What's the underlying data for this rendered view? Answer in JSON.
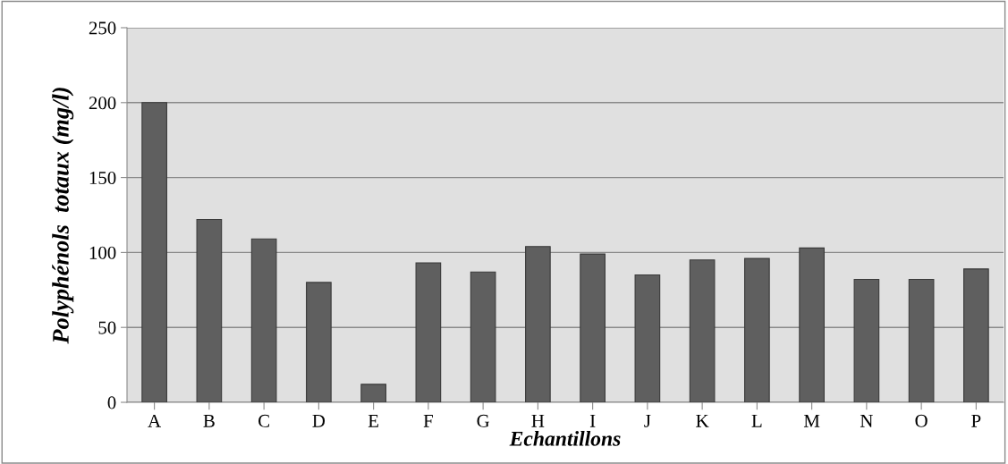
{
  "chart_data": {
    "type": "bar",
    "xlabel": "Echantillons",
    "ylabel": "Polyphénols  totaux (mg/l)",
    "categories": [
      "A",
      "B",
      "C",
      "D",
      "E",
      "F",
      "G",
      "H",
      "I",
      "J",
      "K",
      "L",
      "M",
      "N",
      "O",
      "P"
    ],
    "values": [
      200,
      122,
      109,
      80,
      12,
      93,
      87,
      104,
      99,
      85,
      95,
      96,
      103,
      82,
      82,
      89
    ],
    "color": "#5f5f5f",
    "ylim": [
      0,
      250
    ],
    "yticks": [
      0,
      50,
      100,
      150,
      200,
      250
    ],
    "grid": "y",
    "legend": false
  }
}
